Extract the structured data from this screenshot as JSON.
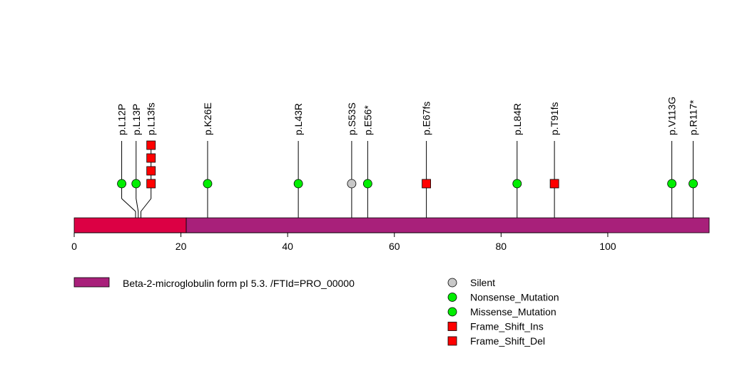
{
  "chart_data": {
    "type": "lollipop",
    "x_axis": {
      "range": [
        0,
        119
      ],
      "ticks": [
        0,
        20,
        40,
        60,
        80,
        100
      ],
      "tick_labels": [
        "0",
        "20",
        "40",
        "60",
        "80",
        "100"
      ]
    },
    "protein": {
      "length": 119,
      "domains": [
        {
          "start": 0,
          "end": 21,
          "color": "#dc0044"
        },
        {
          "start": 21,
          "end": 119,
          "color": "#a8207a"
        }
      ]
    },
    "mutations": [
      {
        "label": "p.L12P",
        "position": 11.5,
        "marker_x": 8.9,
        "types": [
          "Missense_Mutation"
        ]
      },
      {
        "label": "p.L13P",
        "position": 12,
        "marker_x": 11.6,
        "types": [
          "Missense_Mutation"
        ]
      },
      {
        "label": "p.L13fs",
        "position": 12.5,
        "marker_x": 14.4,
        "types": [
          "Frame_Shift_Del",
          "Frame_Shift_Del",
          "Frame_Shift_Del",
          "Frame_Shift_Del"
        ]
      },
      {
        "label": "p.K26E",
        "position": 25,
        "marker_x": 25,
        "types": [
          "Missense_Mutation"
        ]
      },
      {
        "label": "p.L43R",
        "position": 42,
        "marker_x": 42,
        "types": [
          "Missense_Mutation"
        ]
      },
      {
        "label": "p.S53S",
        "position": 52,
        "marker_x": 52,
        "types": [
          "Silent"
        ]
      },
      {
        "label": "p.E56*",
        "position": 55,
        "marker_x": 55,
        "types": [
          "Nonsense_Mutation"
        ]
      },
      {
        "label": "p.E67fs",
        "position": 66,
        "marker_x": 66,
        "types": [
          "Frame_Shift_Del"
        ]
      },
      {
        "label": "p.L84R",
        "position": 83,
        "marker_x": 83,
        "types": [
          "Missense_Mutation"
        ]
      },
      {
        "label": "p.T91fs",
        "position": 90,
        "marker_x": 90,
        "types": [
          "Frame_Shift_Del"
        ]
      },
      {
        "label": "p.V113G",
        "position": 112,
        "marker_x": 112,
        "types": [
          "Missense_Mutation"
        ]
      },
      {
        "label": "p.R117*",
        "position": 116,
        "marker_x": 116,
        "types": [
          "Nonsense_Mutation"
        ]
      }
    ],
    "legend": {
      "domain_label": "Beta-2-microglobulin form pI 5.3. /FTId=PRO_00000",
      "domain_color": "#a8207a",
      "items": [
        {
          "label": "Silent",
          "shape": "circle",
          "color": "#c8c8c8"
        },
        {
          "label": "Nonsense_Mutation",
          "shape": "circle",
          "color": "#00ee00"
        },
        {
          "label": "Missense_Mutation",
          "shape": "circle",
          "color": "#00ee00"
        },
        {
          "label": "Frame_Shift_Ins",
          "shape": "square",
          "color": "#ff0000"
        },
        {
          "label": "Frame_Shift_Del",
          "shape": "square",
          "color": "#ff0000"
        }
      ]
    },
    "type_styles": {
      "Silent": {
        "shape": "circle",
        "color": "#c8c8c8"
      },
      "Nonsense_Mutation": {
        "shape": "circle",
        "color": "#00ee00"
      },
      "Missense_Mutation": {
        "shape": "circle",
        "color": "#00ee00"
      },
      "Frame_Shift_Ins": {
        "shape": "square",
        "color": "#ff0000"
      },
      "Frame_Shift_Del": {
        "shape": "square",
        "color": "#ff0000"
      }
    }
  }
}
